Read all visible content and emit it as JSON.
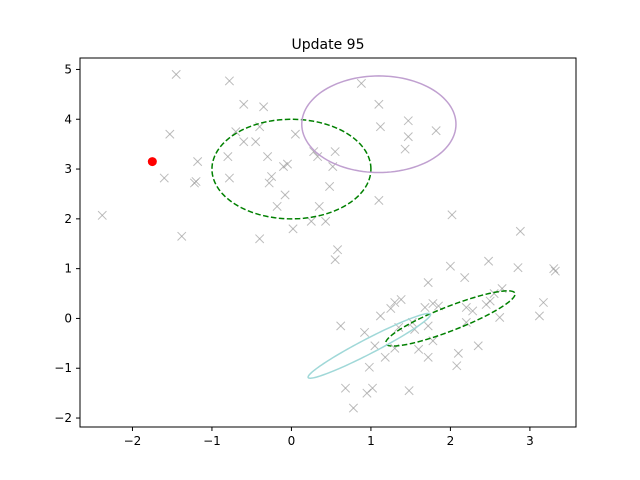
{
  "chart_data": {
    "type": "scatter",
    "title": "Update 95",
    "xlabel": "",
    "ylabel": "",
    "xlim": [
      -2.66,
      3.58
    ],
    "ylim": [
      -2.18,
      5.23
    ],
    "x_ticks": [
      -2,
      -1,
      0,
      1,
      2,
      3
    ],
    "y_ticks": [
      -2,
      -1,
      0,
      1,
      2,
      3,
      4,
      5
    ],
    "grid": false,
    "legend": "none",
    "points_marker": "x",
    "points_color": "#999999",
    "points": [
      [
        -1.45,
        4.9
      ],
      [
        -0.78,
        4.77
      ],
      [
        -0.6,
        4.3
      ],
      [
        -0.35,
        4.25
      ],
      [
        -1.53,
        3.7
      ],
      [
        -0.7,
        3.75
      ],
      [
        -0.6,
        3.55
      ],
      [
        -0.45,
        3.55
      ],
      [
        -0.4,
        3.85
      ],
      [
        -0.8,
        3.25
      ],
      [
        -1.18,
        3.15
      ],
      [
        -1.6,
        2.82
      ],
      [
        -1.2,
        2.75
      ],
      [
        -1.22,
        2.72
      ],
      [
        -0.78,
        2.82
      ],
      [
        -0.3,
        3.25
      ],
      [
        -0.1,
        3.05
      ],
      [
        -0.05,
        3.1
      ],
      [
        -0.25,
        2.85
      ],
      [
        -0.28,
        2.72
      ],
      [
        -0.18,
        2.25
      ],
      [
        -0.08,
        2.48
      ],
      [
        0.05,
        3.7
      ],
      [
        0.28,
        3.35
      ],
      [
        0.33,
        3.25
      ],
      [
        0.55,
        3.35
      ],
      [
        0.52,
        3.05
      ],
      [
        0.48,
        2.65
      ],
      [
        0.35,
        2.25
      ],
      [
        0.25,
        1.95
      ],
      [
        0.43,
        1.95
      ],
      [
        -0.4,
        1.6
      ],
      [
        0.02,
        1.8
      ],
      [
        0.58,
        1.38
      ],
      [
        0.55,
        1.18
      ],
      [
        -2.38,
        2.07
      ],
      [
        -1.38,
        1.65
      ],
      [
        0.88,
        4.72
      ],
      [
        1.1,
        4.3
      ],
      [
        1.12,
        3.85
      ],
      [
        1.47,
        3.97
      ],
      [
        1.47,
        3.65
      ],
      [
        1.43,
        3.4
      ],
      [
        1.82,
        3.77
      ],
      [
        1.1,
        2.37
      ],
      [
        2.02,
        2.08
      ],
      [
        2.88,
        1.75
      ],
      [
        2.0,
        1.05
      ],
      [
        2.48,
        1.15
      ],
      [
        2.18,
        0.82
      ],
      [
        1.72,
        0.72
      ],
      [
        2.85,
        1.02
      ],
      [
        3.3,
        1.0
      ],
      [
        3.32,
        0.95
      ],
      [
        3.17,
        0.32
      ],
      [
        3.12,
        0.05
      ],
      [
        2.65,
        0.6
      ],
      [
        2.55,
        0.5
      ],
      [
        2.5,
        0.35
      ],
      [
        2.45,
        0.28
      ],
      [
        2.2,
        0.22
      ],
      [
        2.28,
        0.15
      ],
      [
        2.62,
        0.02
      ],
      [
        2.2,
        -0.08
      ],
      [
        2.35,
        -0.55
      ],
      [
        2.1,
        -0.7
      ],
      [
        2.08,
        -0.95
      ],
      [
        1.85,
        0.25
      ],
      [
        1.78,
        0.3
      ],
      [
        1.68,
        0.22
      ],
      [
        1.72,
        -0.15
      ],
      [
        1.78,
        -0.45
      ],
      [
        1.72,
        -0.78
      ],
      [
        1.6,
        -0.62
      ],
      [
        1.3,
        0.32
      ],
      [
        1.38,
        0.38
      ],
      [
        1.25,
        0.2
      ],
      [
        1.12,
        0.05
      ],
      [
        1.35,
        -0.18
      ],
      [
        1.52,
        -0.08
      ],
      [
        1.55,
        -0.22
      ],
      [
        1.3,
        -0.6
      ],
      [
        1.18,
        -0.78
      ],
      [
        0.92,
        -0.28
      ],
      [
        0.98,
        -0.98
      ],
      [
        0.62,
        -0.15
      ],
      [
        0.68,
        -1.4
      ],
      [
        0.78,
        -1.8
      ],
      [
        0.95,
        -1.5
      ],
      [
        1.02,
        -1.4
      ],
      [
        1.48,
        -1.45
      ],
      [
        1.05,
        -0.55
      ]
    ],
    "highlight_point": {
      "x": -1.75,
      "y": 3.15,
      "color": "#ff0000"
    },
    "ellipses": [
      {
        "cx": 0.0,
        "cy": 3.0,
        "rx": 1.0,
        "ry": 1.0,
        "angle_deg": 0,
        "color": "#008000",
        "dashed": true
      },
      {
        "cx": 1.1,
        "cy": 3.9,
        "rx": 0.97,
        "ry": 0.97,
        "angle_deg": 0,
        "color": "#c0a0d0",
        "dashed": false
      },
      {
        "cx": 2.0,
        "cy": 0.0,
        "rx": 0.96,
        "ry": 0.22,
        "angle_deg": 33,
        "color": "#008000",
        "dashed": true
      },
      {
        "cx": 0.98,
        "cy": -0.55,
        "rx": 1.0,
        "ry": 0.13,
        "angle_deg": 40,
        "color": "#a0d8d8",
        "dashed": false
      }
    ]
  }
}
